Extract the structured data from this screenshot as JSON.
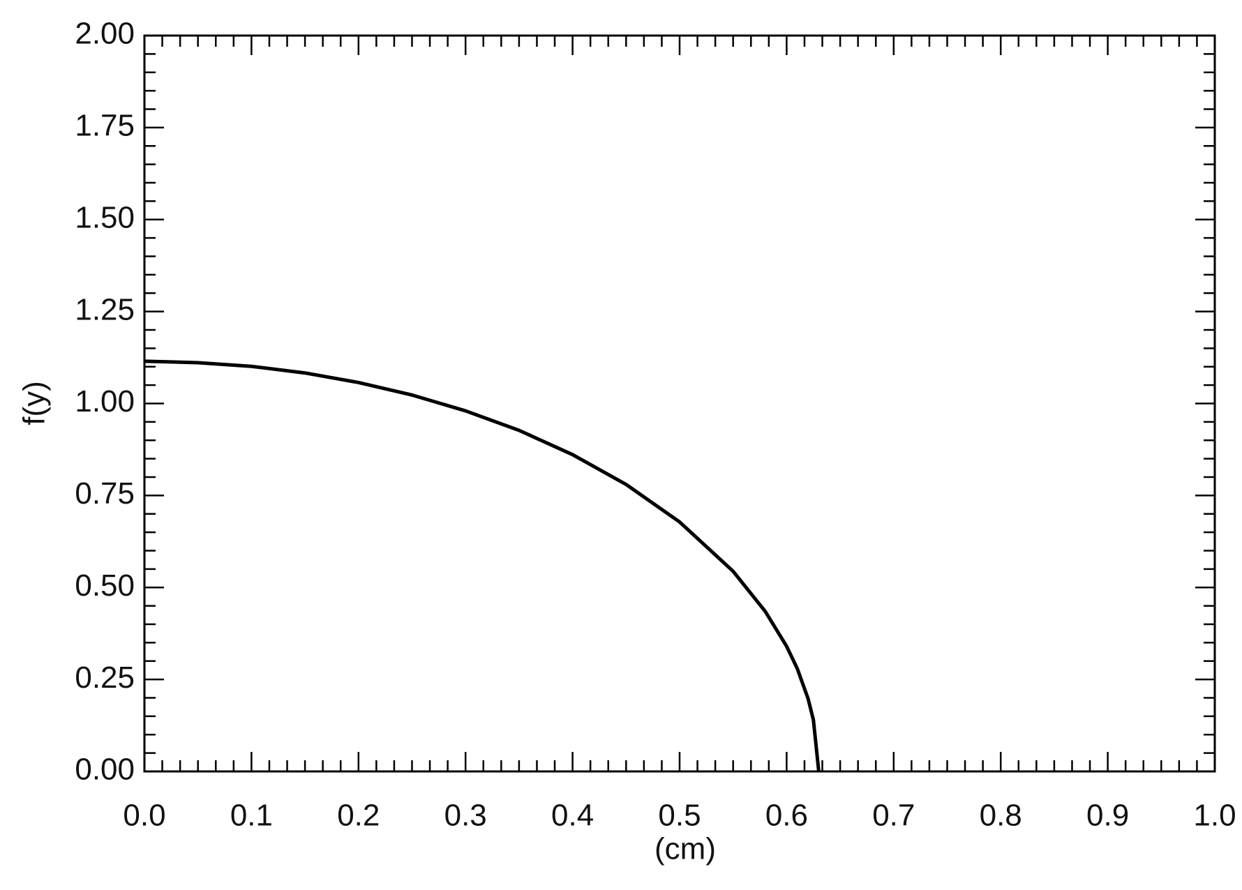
{
  "chart_data": {
    "type": "line",
    "x_label": "(cm)",
    "y_label": "f(y)",
    "x": [
      0,
      0.05,
      0.1,
      0.15,
      0.2,
      0.25,
      0.3,
      0.35,
      0.4,
      0.45,
      0.5,
      0.55,
      0.58,
      0.6,
      0.61,
      0.62,
      0.625,
      0.63
    ],
    "series": [
      {
        "color": "#000000",
        "values": [
          1.115,
          1.111,
          1.101,
          1.083,
          1.057,
          1.023,
          0.98,
          0.927,
          0.861,
          0.78,
          0.678,
          0.544,
          0.435,
          0.34,
          0.279,
          0.198,
          0.14,
          0
        ]
      }
    ],
    "xlim": [
      0,
      1
    ],
    "ylim": [
      0,
      2
    ],
    "xticks": [
      {
        "value": 0,
        "label": "0.0"
      },
      0.1,
      0.2,
      0.3,
      0.4,
      0.5,
      0.6,
      0.7,
      0.8,
      0.9,
      {
        "value": 1,
        "label": "1.0"
      }
    ],
    "yticks": [
      {
        "value": 0,
        "label": "0.00"
      },
      0.25,
      {
        "value": 0.5,
        "label": "0.50"
      },
      0.75,
      {
        "value": 1,
        "label": "1.00"
      },
      1.25,
      {
        "value": 1.5,
        "label": "1.50"
      },
      1.75,
      {
        "value": 2,
        "label": "2.00"
      }
    ],
    "grid": false
  }
}
